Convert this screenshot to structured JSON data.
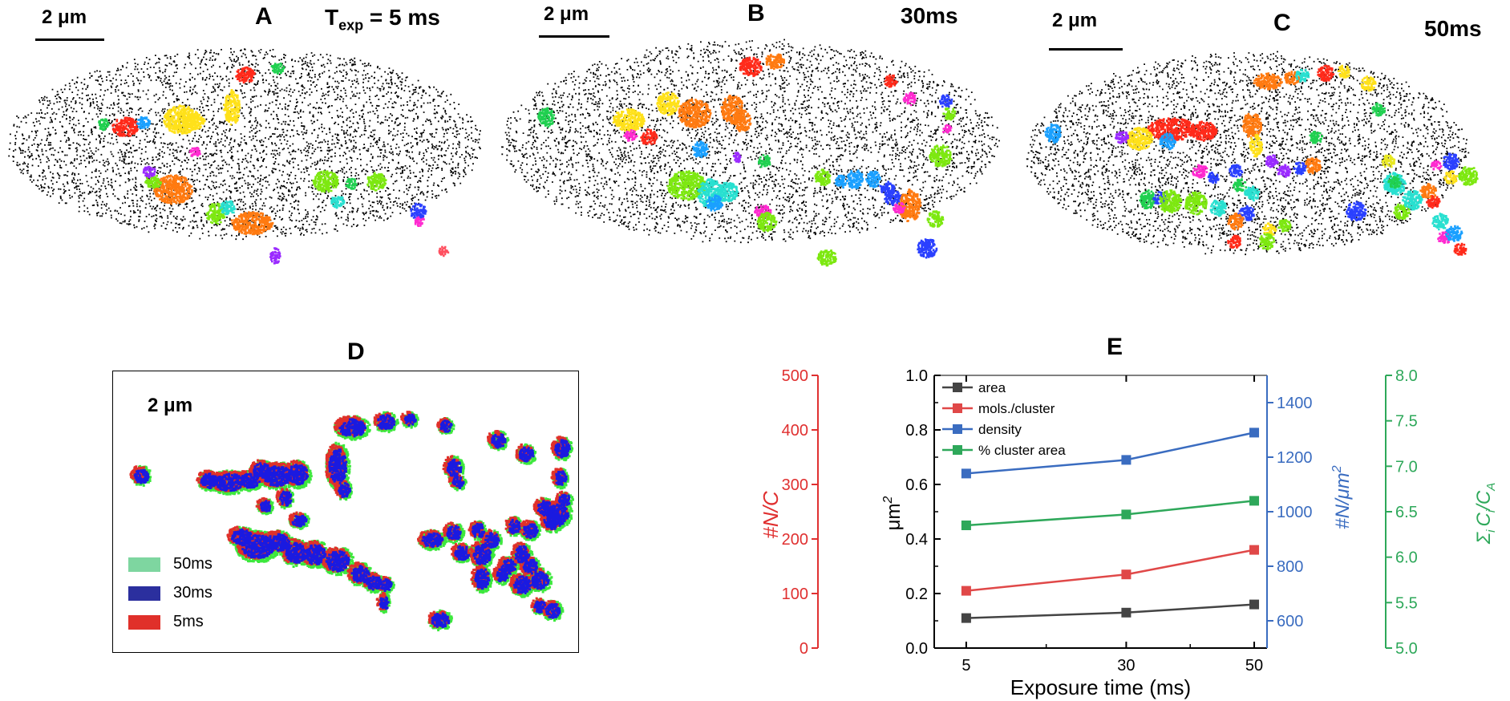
{
  "panels": {
    "A": {
      "letter": "A",
      "scale": "2 μm",
      "exposure_prefix": "T",
      "exposure_sub": "exp",
      "exposure_value": " = 5 ms"
    },
    "B": {
      "letter": "B",
      "scale": "2 μm",
      "exposure": "30ms"
    },
    "C": {
      "letter": "C",
      "scale": "2 μm",
      "exposure": "50ms"
    },
    "D": {
      "letter": "D",
      "scale": "2 μm",
      "legend": [
        {
          "label": "50ms",
          "color": "#7ed6a0"
        },
        {
          "label": "30ms",
          "color": "#2b2f9e"
        },
        {
          "label": "5ms",
          "color": "#e0302a"
        }
      ]
    },
    "E": {
      "letter": "E"
    }
  },
  "chart_data": {
    "type": "line",
    "title": "E",
    "xlabel": "Exposure time (ms)",
    "x": [
      5,
      30,
      50
    ],
    "xlim": [
      0,
      52
    ],
    "x_ticks": [
      "5",
      "30",
      "50"
    ],
    "axes": {
      "left": {
        "label": "μm²",
        "label_main": "μm",
        "label_sup": "2",
        "lim": [
          0.0,
          1.0
        ],
        "ticks": [
          "0.0",
          "0.2",
          "0.4",
          "0.6",
          "0.8",
          "1.0"
        ],
        "color": "#000000"
      },
      "red": {
        "label": "#N/C",
        "lim": [
          0,
          500
        ],
        "ticks": [
          "0",
          "100",
          "200",
          "300",
          "400",
          "500"
        ],
        "color": "#e03030"
      },
      "blue": {
        "label": "#N/μm²",
        "label_main": "#N/μm",
        "label_sup": "2",
        "lim": [
          500,
          1500
        ],
        "ticks": [
          "600",
          "800",
          "1000",
          "1200",
          "1400"
        ],
        "color": "#3a6cc0"
      },
      "green": {
        "label": "Σi Ci/CA",
        "label_sigma": "Σ",
        "label_sub_i": "i",
        "label_c": "C",
        "label_slash": "/",
        "label_sub_a": "A",
        "lim": [
          5.0,
          8.0
        ],
        "ticks": [
          "5.0",
          "5.5",
          "6.0",
          "6.5",
          "7.0",
          "7.5",
          "8.0"
        ],
        "color": "#2ea85a"
      }
    },
    "series": [
      {
        "name": "area",
        "axis": "left",
        "color": "#444444",
        "values": [
          0.11,
          0.13,
          0.16
        ]
      },
      {
        "name": "mols./cluster",
        "axis": "left",
        "color": "#e04848",
        "values": [
          0.21,
          0.27,
          0.36
        ]
      },
      {
        "name": "density",
        "axis": "left",
        "color": "#3a6cc0",
        "values": [
          0.64,
          0.69,
          0.79
        ]
      },
      {
        "name": "% cluster area",
        "axis": "left",
        "color": "#2ea85a",
        "values": [
          0.45,
          0.49,
          0.54
        ]
      }
    ],
    "legend_position": "top-left"
  }
}
